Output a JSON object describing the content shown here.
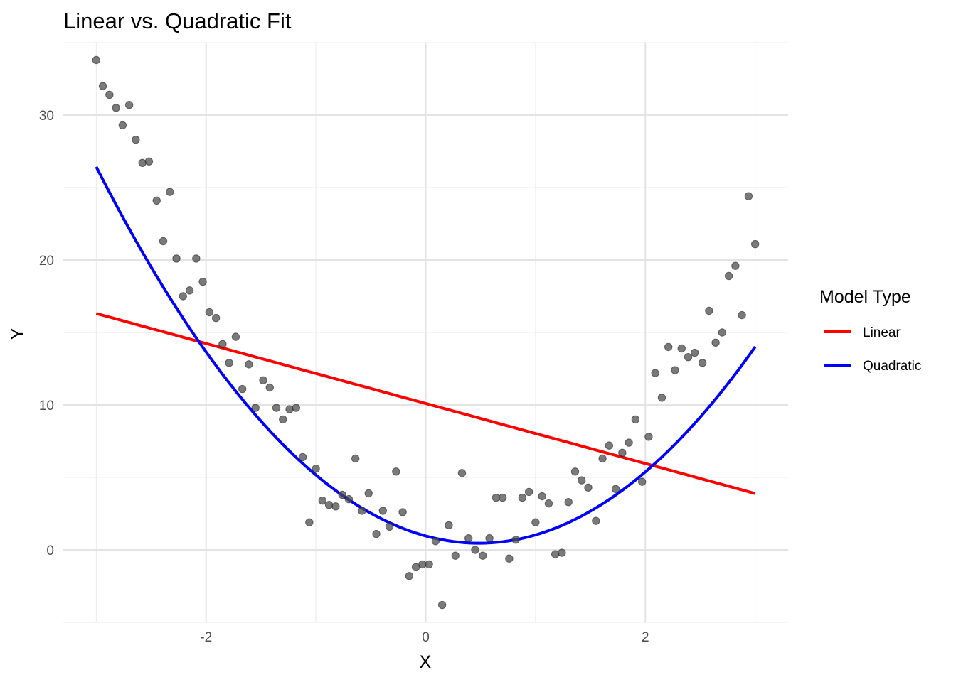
{
  "chart_data": {
    "type": "scatter",
    "title": "Linear vs. Quadratic Fit",
    "xlabel": "X",
    "ylabel": "Y",
    "xlim": [
      -3.3,
      3.3
    ],
    "ylim": [
      -5,
      35
    ],
    "x_ticks": [
      -2,
      0,
      2
    ],
    "x_tick_labels": [
      "-2",
      "0",
      "2"
    ],
    "y_ticks": [
      0,
      10,
      20,
      30
    ],
    "y_tick_labels": [
      "0",
      "10",
      "20",
      "30"
    ],
    "grid": true,
    "legend_title": "Model Type",
    "legend_position": "right",
    "points": {
      "color": "#4d4d4d",
      "x": [
        -3.0,
        -2.94,
        -2.88,
        -2.82,
        -2.76,
        -2.7,
        -2.64,
        -2.58,
        -2.52,
        -2.45,
        -2.39,
        -2.33,
        -2.27,
        -2.21,
        -2.15,
        -2.09,
        -2.03,
        -1.97,
        -1.91,
        -1.85,
        -1.79,
        -1.73,
        -1.67,
        -1.61,
        -1.55,
        -1.48,
        -1.42,
        -1.36,
        -1.3,
        -1.24,
        -1.18,
        -1.12,
        -1.06,
        -1.0,
        -0.94,
        -0.88,
        -0.82,
        -0.76,
        -0.7,
        -0.64,
        -0.58,
        -0.52,
        -0.45,
        -0.39,
        -0.33,
        -0.27,
        -0.21,
        -0.15,
        -0.09,
        -0.03,
        0.03,
        0.09,
        0.15,
        0.21,
        0.27,
        0.33,
        0.39,
        0.45,
        0.52,
        0.58,
        0.64,
        0.7,
        0.76,
        0.82,
        0.88,
        0.94,
        1.0,
        1.06,
        1.12,
        1.18,
        1.24,
        1.3,
        1.36,
        1.42,
        1.48,
        1.55,
        1.61,
        1.67,
        1.73,
        1.79,
        1.85,
        1.91,
        1.97,
        2.03,
        2.09,
        2.15,
        2.21,
        2.27,
        2.33,
        2.39,
        2.45,
        2.52,
        2.58,
        2.64,
        2.7,
        2.76,
        2.82,
        2.88,
        2.94,
        3.0
      ],
      "y": [
        33.8,
        32.0,
        31.4,
        30.5,
        29.3,
        30.7,
        28.3,
        26.7,
        26.8,
        24.1,
        21.3,
        24.7,
        20.1,
        17.5,
        17.9,
        20.1,
        18.5,
        16.4,
        16.0,
        14.2,
        12.9,
        14.7,
        11.1,
        12.8,
        9.8,
        11.7,
        11.2,
        9.8,
        9.0,
        9.7,
        9.8,
        6.4,
        1.9,
        5.6,
        3.4,
        3.1,
        3.0,
        3.8,
        3.5,
        6.3,
        2.7,
        3.9,
        1.1,
        2.7,
        1.6,
        5.4,
        2.6,
        -1.8,
        -1.2,
        -1.0,
        -1.0,
        0.6,
        -3.8,
        1.7,
        -0.4,
        5.3,
        0.8,
        0.0,
        -0.4,
        0.8,
        3.6,
        3.6,
        -0.6,
        0.7,
        3.6,
        4.0,
        1.9,
        3.7,
        3.2,
        -0.3,
        -0.2,
        3.3,
        5.4,
        4.8,
        4.3,
        2.0,
        6.3,
        7.2,
        4.2,
        6.7,
        7.4,
        9.0,
        4.7,
        7.8,
        12.2,
        10.5,
        14.0,
        12.4,
        13.9,
        13.3,
        13.6,
        12.9,
        16.5,
        14.3,
        15.0,
        18.9,
        19.6,
        16.2,
        24.4,
        21.1
      ]
    },
    "series": [
      {
        "name": "Linear",
        "color": "#ff0000",
        "kind": "linear",
        "intercept": 10.1,
        "slope": -2.07,
        "x_range": [
          -3,
          3
        ]
      },
      {
        "name": "Quadratic",
        "color": "#0000ff",
        "kind": "quadratic",
        "a": 2.14,
        "b": -2.07,
        "c": 0.96,
        "x_range": [
          -3,
          3
        ]
      }
    ]
  }
}
